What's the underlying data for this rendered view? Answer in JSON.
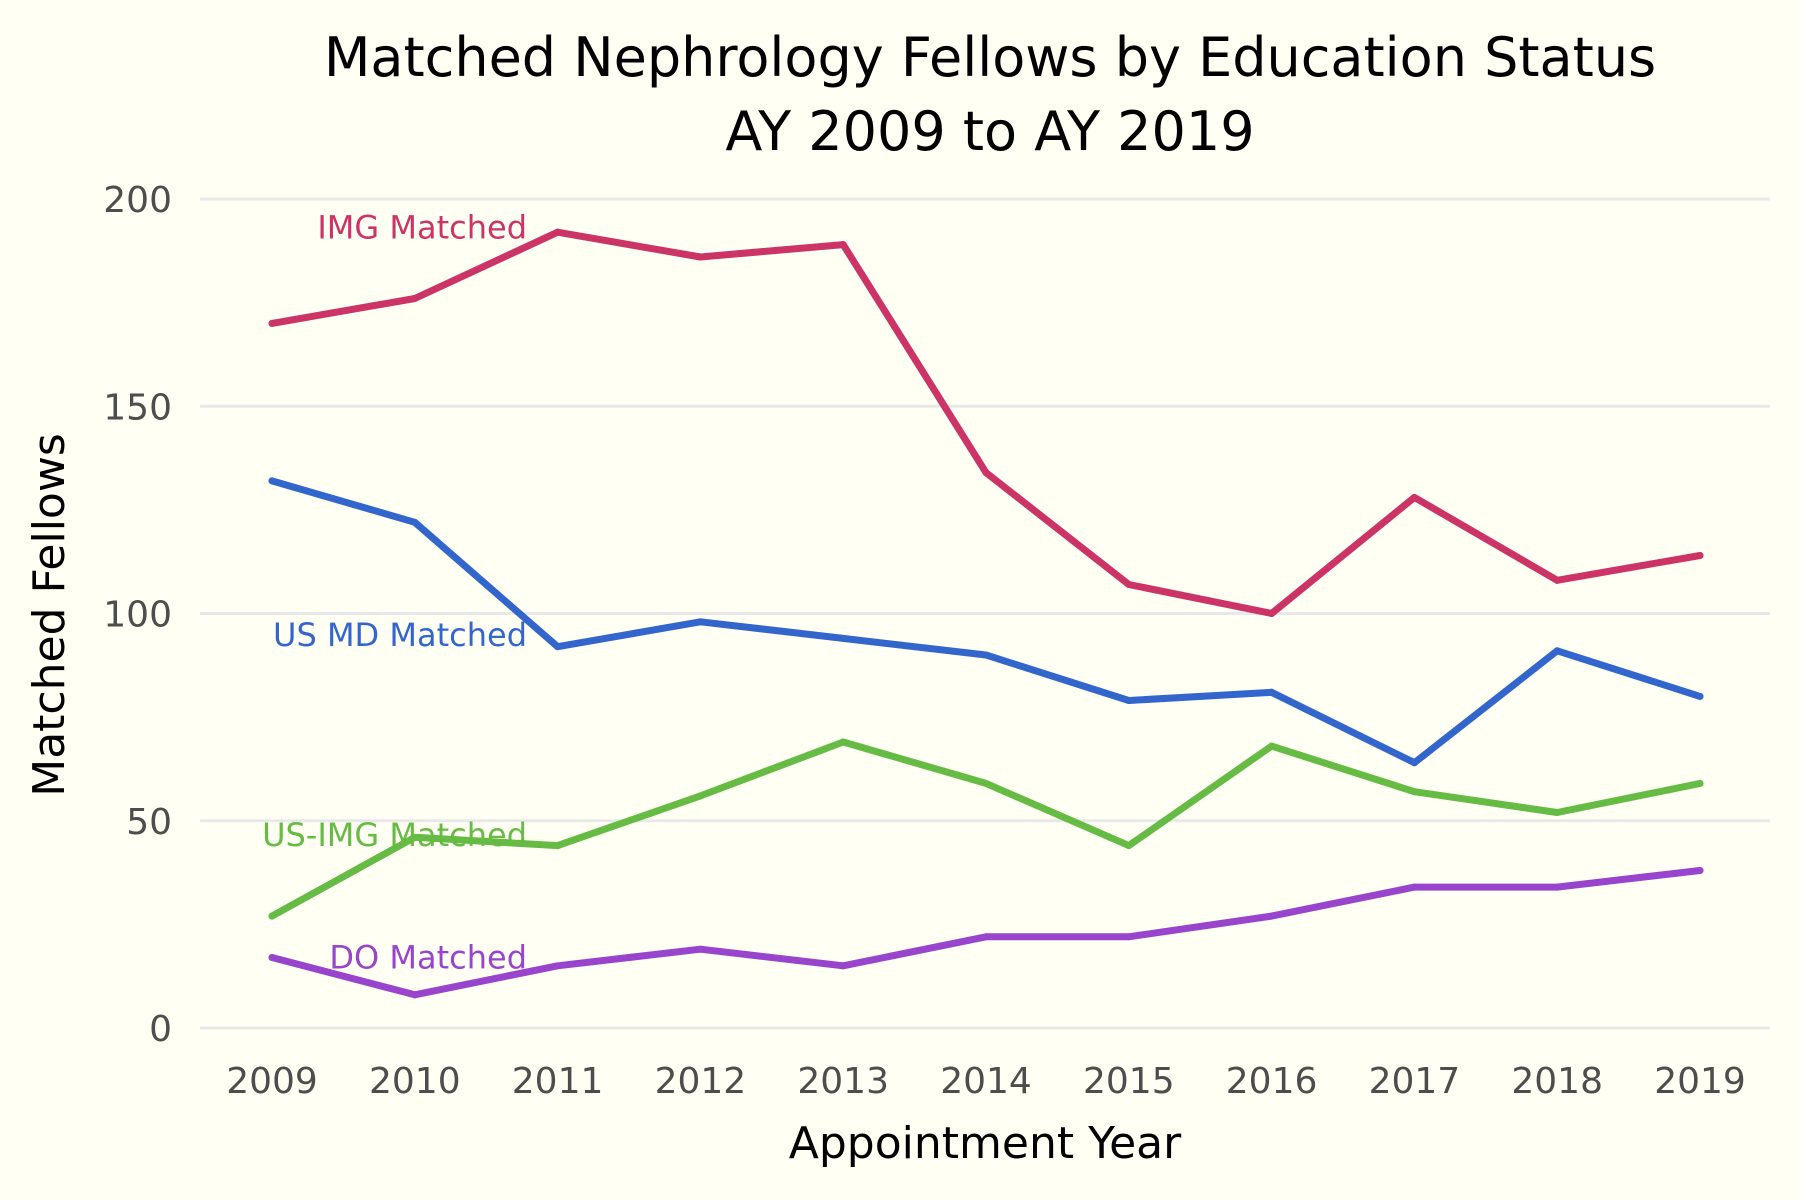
{
  "background_color": "#fffff3",
  "chart_data": {
    "type": "line",
    "title_lines": [
      "Matched Nephrology Fellows by Education Status",
      "AY 2009 to AY 2019"
    ],
    "xlabel": "Appointment Year",
    "ylabel": "Matched Fellows",
    "x": [
      "2009",
      "2010",
      "2011",
      "2012",
      "2013",
      "2014",
      "2015",
      "2016",
      "2017",
      "2018",
      "2019"
    ],
    "yticks": [
      "0",
      "50",
      "100",
      "150",
      "200"
    ],
    "ylim": [
      0,
      200
    ],
    "grid": true,
    "legend": "direct labels at left",
    "series": [
      {
        "name": "IMG Matched",
        "color": "#cc3366",
        "values": [
          170,
          176,
          192,
          186,
          189,
          134,
          107,
          100,
          128,
          108,
          114
        ]
      },
      {
        "name": "US MD Matched",
        "color": "#3366cc",
        "values": [
          132,
          122,
          92,
          98,
          94,
          90,
          79,
          81,
          64,
          91,
          80
        ]
      },
      {
        "name": "US-IMG Matched",
        "color": "#66bb44",
        "values": [
          27,
          46,
          44,
          56,
          69,
          59,
          44,
          68,
          57,
          52,
          59
        ]
      },
      {
        "name": "DO Matched",
        "color": "#9944cc",
        "values": [
          17,
          8,
          15,
          19,
          15,
          22,
          22,
          27,
          34,
          34,
          38
        ]
      }
    ]
  }
}
